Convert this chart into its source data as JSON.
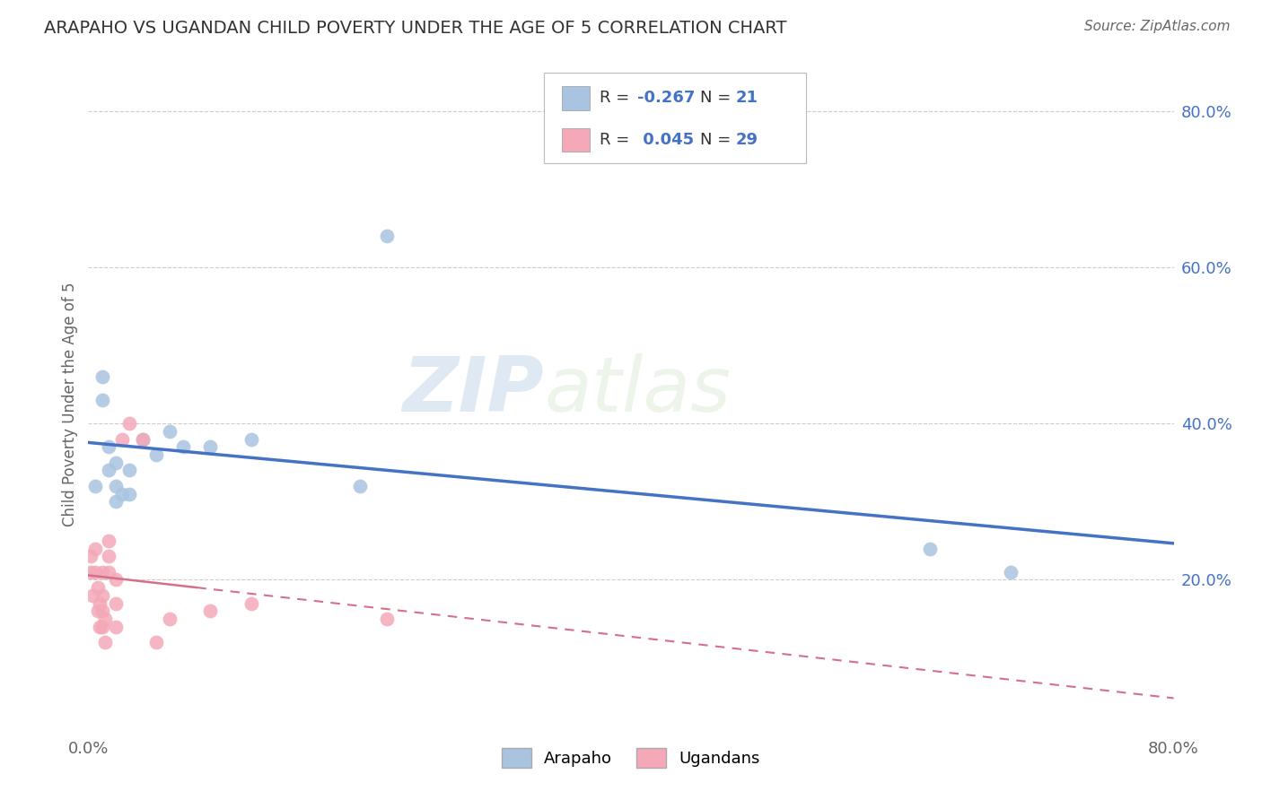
{
  "title": "ARAPAHO VS UGANDAN CHILD POVERTY UNDER THE AGE OF 5 CORRELATION CHART",
  "source": "Source: ZipAtlas.com",
  "ylabel": "Child Poverty Under the Age of 5",
  "xlim": [
    0.0,
    0.8
  ],
  "ylim": [
    0.0,
    0.85
  ],
  "ytick_right_labels": [
    "20.0%",
    "40.0%",
    "60.0%",
    "80.0%"
  ],
  "ytick_right_values": [
    0.2,
    0.4,
    0.6,
    0.8
  ],
  "arapaho_color": "#a8c4e0",
  "ugandan_color": "#f4a8b8",
  "arapaho_line_color": "#4472c4",
  "ugandan_line_color": "#d4708a",
  "R_arapaho": -0.267,
  "N_arapaho": 21,
  "R_ugandan": 0.045,
  "N_ugandan": 29,
  "watermark_zip": "ZIP",
  "watermark_atlas": "atlas",
  "arapaho_x": [
    0.005,
    0.01,
    0.01,
    0.015,
    0.015,
    0.02,
    0.02,
    0.02,
    0.025,
    0.03,
    0.03,
    0.04,
    0.05,
    0.06,
    0.07,
    0.09,
    0.12,
    0.2,
    0.22,
    0.62,
    0.68
  ],
  "arapaho_y": [
    0.32,
    0.43,
    0.46,
    0.34,
    0.37,
    0.3,
    0.32,
    0.35,
    0.31,
    0.31,
    0.34,
    0.38,
    0.36,
    0.39,
    0.37,
    0.37,
    0.38,
    0.32,
    0.64,
    0.24,
    0.21
  ],
  "ugandan_x": [
    0.002,
    0.002,
    0.003,
    0.005,
    0.005,
    0.007,
    0.007,
    0.008,
    0.008,
    0.01,
    0.01,
    0.01,
    0.01,
    0.012,
    0.012,
    0.015,
    0.015,
    0.015,
    0.02,
    0.02,
    0.02,
    0.025,
    0.03,
    0.04,
    0.05,
    0.06,
    0.09,
    0.12,
    0.22
  ],
  "ugandan_y": [
    0.21,
    0.23,
    0.18,
    0.21,
    0.24,
    0.16,
    0.19,
    0.14,
    0.17,
    0.14,
    0.16,
    0.18,
    0.21,
    0.12,
    0.15,
    0.21,
    0.23,
    0.25,
    0.14,
    0.17,
    0.2,
    0.38,
    0.4,
    0.38,
    0.12,
    0.15,
    0.16,
    0.17,
    0.15
  ]
}
